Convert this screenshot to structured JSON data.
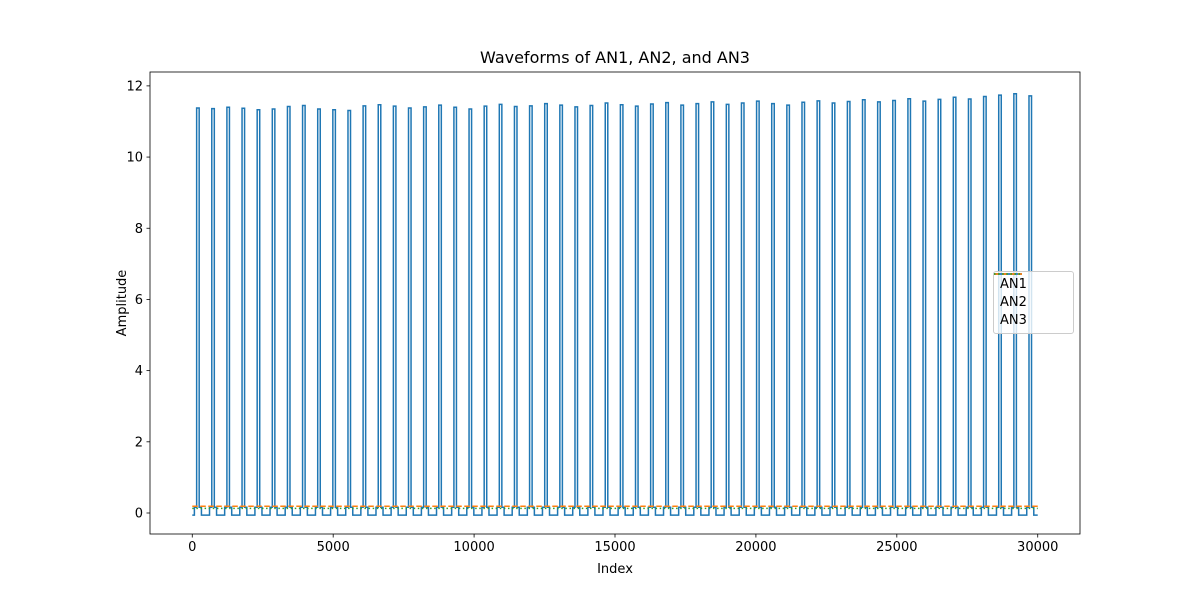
{
  "chart_data": {
    "type": "line",
    "title": "Waveforms of AN1, AN2, and AN3",
    "xlabel": "Index",
    "ylabel": "Amplitude",
    "xlim": [
      -1500,
      31500
    ],
    "ylim": [
      -0.59,
      12.39
    ],
    "xticks": [
      0,
      5000,
      10000,
      15000,
      20000,
      25000,
      30000
    ],
    "yticks": [
      0,
      2,
      4,
      6,
      8,
      10,
      12
    ],
    "grid": false,
    "legend_position": "center-right",
    "spine_color": "#000000",
    "legend_border_color": "#cccccc",
    "series": [
      {
        "name": "AN1",
        "color": "#1f77b4",
        "style": "solid",
        "waveform": "pulse_train",
        "x_range": [
          0,
          30000
        ],
        "pulse_start": 155,
        "pulse_period": 537,
        "pulse_width": 90,
        "gap_level": -0.06,
        "shoulder_level": 0.16,
        "peaks": [
          11.38,
          11.36,
          11.4,
          11.37,
          11.33,
          11.35,
          11.42,
          11.45,
          11.35,
          11.33,
          11.31,
          11.44,
          11.47,
          11.43,
          11.38,
          11.41,
          11.46,
          11.4,
          11.35,
          11.43,
          11.48,
          11.42,
          11.44,
          11.5,
          11.46,
          11.41,
          11.45,
          11.52,
          11.47,
          11.43,
          11.49,
          11.53,
          11.46,
          11.5,
          11.55,
          11.48,
          11.52,
          11.57,
          11.5,
          11.46,
          11.54,
          11.58,
          11.52,
          11.56,
          11.61,
          11.55,
          11.59,
          11.64,
          11.57,
          11.62,
          11.68,
          11.63,
          11.7,
          11.74,
          11.78,
          11.72
        ]
      },
      {
        "name": "AN2",
        "color": "#ff7f0e",
        "style": "dashed",
        "waveform": "constant",
        "x_range": [
          0,
          30000
        ],
        "level": 0.19
      },
      {
        "name": "AN3",
        "color": "#2ca02c",
        "style": "dotted",
        "waveform": "constant",
        "x_range": [
          0,
          30000
        ],
        "level": 0.13
      }
    ]
  }
}
